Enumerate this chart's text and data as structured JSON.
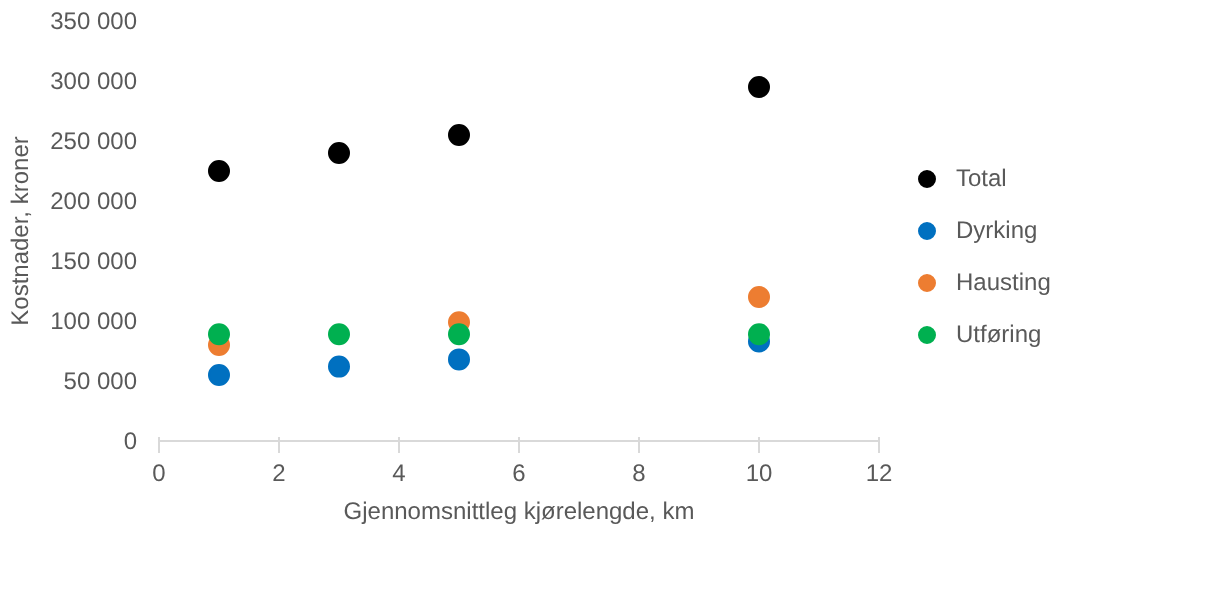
{
  "chart_data": {
    "type": "scatter",
    "xlabel": "Gjennomsnittleg kjørelengde, km",
    "ylabel": "Kostnader, kroner",
    "xlim": [
      0,
      12
    ],
    "xticks": [
      0,
      2,
      4,
      6,
      8,
      10,
      12
    ],
    "ylim": [
      0,
      350000
    ],
    "yticks": [
      {
        "value": 0,
        "label": "0"
      },
      {
        "value": 50000,
        "label": "50 000"
      },
      {
        "value": 100000,
        "label": "100 000"
      },
      {
        "value": 150000,
        "label": "150 000"
      },
      {
        "value": 200000,
        "label": "200 000"
      },
      {
        "value": 250000,
        "label": "250 000"
      },
      {
        "value": 300000,
        "label": "300 000"
      },
      {
        "value": 350000,
        "label": "350 000"
      }
    ],
    "x": [
      1,
      3,
      5,
      10
    ],
    "series": [
      {
        "name": "Total",
        "color": "#000000",
        "values": [
          225000,
          240000,
          255000,
          295000
        ]
      },
      {
        "name": "Dyrking",
        "color": "#0070c0",
        "values": [
          55000,
          62000,
          68000,
          83000
        ]
      },
      {
        "name": "Hausting",
        "color": "#ed7d31",
        "values": [
          80000,
          null,
          99000,
          120000
        ]
      },
      {
        "name": "Utføring",
        "color": "#00b050",
        "values": [
          89000,
          89000,
          89000,
          89000
        ]
      }
    ],
    "marker": "circle",
    "legend": "right",
    "grid": false
  }
}
